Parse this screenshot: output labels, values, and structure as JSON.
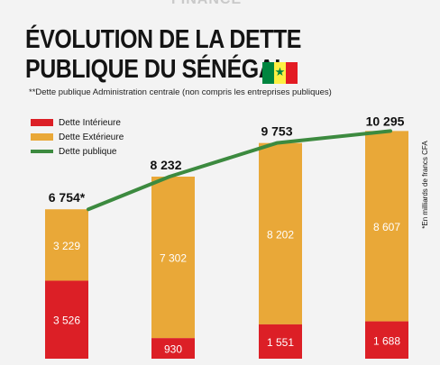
{
  "header": {
    "brand": "FINANCE",
    "title_line1": "ÉVOLUTION DE LA DETTE",
    "title_line2": "PUBLIQUE DU SÉNÉGAL",
    "flag_star": "★",
    "note": "**Dette publique Administration centrale (non compris les entreprises publiques)",
    "unit_note": "*En milliards de francs CFA"
  },
  "colors": {
    "interieure": "#dc1f26",
    "exterieure": "#e9a838",
    "publique": "#3c8a3f"
  },
  "chart_data": {
    "type": "bar",
    "stacked": true,
    "categories": [
      "",
      "",
      "",
      ""
    ],
    "series": [
      {
        "name": "Dette Intérieure",
        "values": [
          3526,
          930,
          1551,
          1688
        ]
      },
      {
        "name": "Dette Extérieure",
        "values": [
          3229,
          7302,
          8202,
          8607
        ]
      }
    ],
    "line": {
      "name": "Dette publique",
      "values": [
        6754,
        8232,
        9753,
        10295
      ]
    },
    "total_labels": [
      "6 754*",
      "8 232",
      "9 753",
      "10 295"
    ],
    "interieure_labels": [
      "3 526",
      "930",
      "1 551",
      "1 688"
    ],
    "exterieure_labels": [
      "3 229",
      "7 302",
      "8 202",
      "8 607"
    ],
    "legend": [
      "Dette Intérieure",
      "Dette Extérieure",
      "Dette publique"
    ],
    "legend_position": "top-left",
    "grid": false
  }
}
